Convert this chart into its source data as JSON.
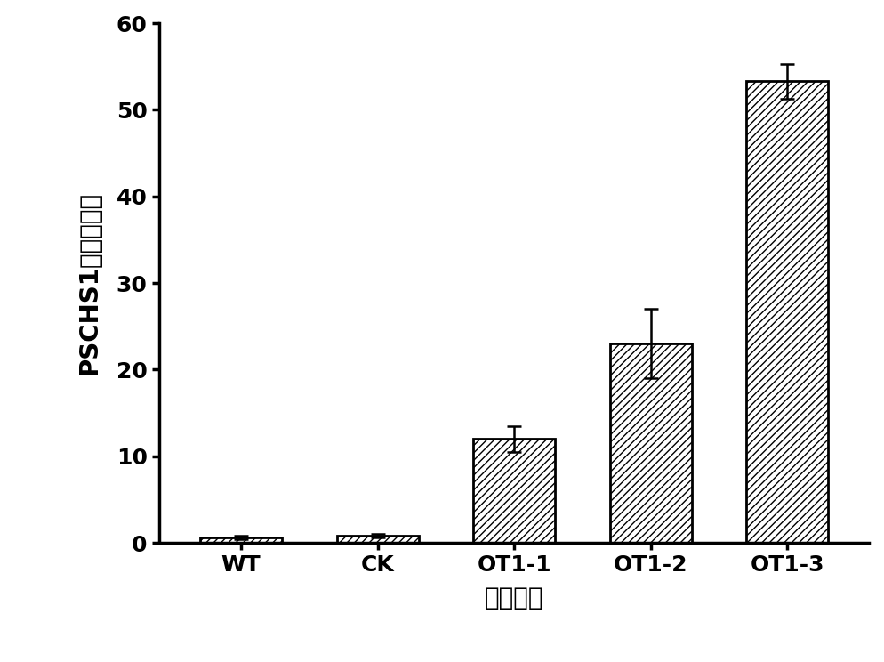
{
  "categories": [
    "WT",
    "CK",
    "OT1-1",
    "OT1-2",
    "OT1-3"
  ],
  "values": [
    0.6,
    0.8,
    12.0,
    23.0,
    53.3
  ],
  "errors": [
    0.2,
    0.2,
    1.5,
    4.0,
    2.0
  ],
  "ylim": [
    0,
    60
  ],
  "yticks": [
    0,
    10,
    20,
    30,
    40,
    50,
    60
  ],
  "ylabel": "PSCHS1相对表达量",
  "xlabel": "菌株编号",
  "bar_color": "#ffffff",
  "bar_edgecolor": "#000000",
  "hatch": "////",
  "background_color": "#ffffff",
  "bar_width": 0.6,
  "figsize": [
    9.94,
    7.44
  ],
  "dpi": 100
}
